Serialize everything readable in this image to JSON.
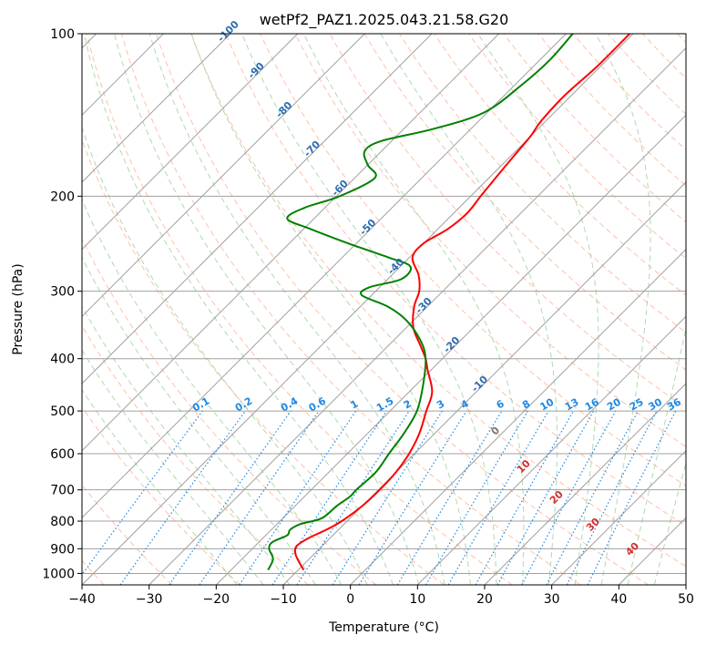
{
  "chart_data": {
    "type": "line",
    "title": "wetPf2_PAZ1.2025.043.21.58.G20",
    "xlabel": "Temperature (°C)",
    "ylabel": "Pressure (hPa)",
    "xlim": [
      -40,
      50
    ],
    "ylim": [
      1050,
      100
    ],
    "y_scale": "log",
    "skew": true,
    "grid": true,
    "x_ticks": [
      -40,
      -30,
      -20,
      -10,
      0,
      10,
      20,
      30,
      40,
      50
    ],
    "y_ticks": [
      1000,
      900,
      800,
      700,
      600,
      500,
      400,
      300,
      200,
      100
    ],
    "colors": {
      "temperature": "#ff0000",
      "dewpoint": "#008000",
      "isotherm": "#a0a0a0",
      "dry_adiabat": "#ffa07a",
      "moist_adiabat": "#90c890",
      "mixing_ratio": "#1e88e5",
      "isotherm_label": "#2c6db0",
      "moist_label": "#d03030",
      "theta_curve": "#d2b48c"
    },
    "isotherm_labels": [
      "-100",
      "-90",
      "-80",
      "-70",
      "-60",
      "-50",
      "-40",
      "-30",
      "-20",
      "-10"
    ],
    "mixing_ratio_labels": [
      "0.1",
      "0.2",
      "0.4",
      "0.6",
      "1",
      "1.5",
      "2",
      "3",
      "4",
      "6",
      "8",
      "10",
      "13",
      "16",
      "20",
      "25",
      "30",
      "36"
    ],
    "moist_adiabat_labels": [
      "0",
      "10",
      "20",
      "30",
      "40"
    ],
    "series": [
      {
        "name": "temperature",
        "points": [
          {
            "p": 985,
            "t": -9.2
          },
          {
            "p": 950,
            "t": -11.2
          },
          {
            "p": 920,
            "t": -12.8
          },
          {
            "p": 890,
            "t": -13.8
          },
          {
            "p": 860,
            "t": -13.2
          },
          {
            "p": 830,
            "t": -11.8
          },
          {
            "p": 800,
            "t": -10.8
          },
          {
            "p": 750,
            "t": -10.0
          },
          {
            "p": 700,
            "t": -9.8
          },
          {
            "p": 650,
            "t": -10.0
          },
          {
            "p": 600,
            "t": -10.8
          },
          {
            "p": 550,
            "t": -12.3
          },
          {
            "p": 500,
            "t": -14.6
          },
          {
            "p": 470,
            "t": -16.0
          },
          {
            "p": 450,
            "t": -17.5
          },
          {
            "p": 420,
            "t": -20.5
          },
          {
            "p": 400,
            "t": -22.5
          },
          {
            "p": 380,
            "t": -25.0
          },
          {
            "p": 350,
            "t": -29.0
          },
          {
            "p": 320,
            "t": -32.0
          },
          {
            "p": 300,
            "t": -33.5
          },
          {
            "p": 280,
            "t": -36.0
          },
          {
            "p": 260,
            "t": -39.5
          },
          {
            "p": 245,
            "t": -40.0
          },
          {
            "p": 230,
            "t": -38.5
          },
          {
            "p": 215,
            "t": -38.0
          },
          {
            "p": 200,
            "t": -38.5
          },
          {
            "p": 185,
            "t": -39.0
          },
          {
            "p": 170,
            "t": -39.5
          },
          {
            "p": 155,
            "t": -40.0
          },
          {
            "p": 145,
            "t": -40.7
          },
          {
            "p": 130,
            "t": -41.0
          },
          {
            "p": 115,
            "t": -40.5
          },
          {
            "p": 100,
            "t": -40.5
          }
        ]
      },
      {
        "name": "dewpoint",
        "points": [
          {
            "p": 985,
            "t": -14.5
          },
          {
            "p": 940,
            "t": -15.4
          },
          {
            "p": 900,
            "t": -17.5
          },
          {
            "p": 875,
            "t": -18.0
          },
          {
            "p": 850,
            "t": -16.8
          },
          {
            "p": 830,
            "t": -17.2
          },
          {
            "p": 810,
            "t": -16.5
          },
          {
            "p": 790,
            "t": -14.2
          },
          {
            "p": 750,
            "t": -13.8
          },
          {
            "p": 720,
            "t": -13.2
          },
          {
            "p": 700,
            "t": -13.3
          },
          {
            "p": 650,
            "t": -13.0
          },
          {
            "p": 600,
            "t": -13.8
          },
          {
            "p": 550,
            "t": -14.6
          },
          {
            "p": 500,
            "t": -16.0
          },
          {
            "p": 450,
            "t": -18.8
          },
          {
            "p": 400,
            "t": -22.5
          },
          {
            "p": 370,
            "t": -26.0
          },
          {
            "p": 340,
            "t": -31.0
          },
          {
            "p": 320,
            "t": -36.0
          },
          {
            "p": 305,
            "t": -41.5
          },
          {
            "p": 295,
            "t": -41.5
          },
          {
            "p": 285,
            "t": -38.0
          },
          {
            "p": 270,
            "t": -38.5
          },
          {
            "p": 260,
            "t": -43.0
          },
          {
            "p": 245,
            "t": -51.0
          },
          {
            "p": 230,
            "t": -59.0
          },
          {
            "p": 220,
            "t": -64.0
          },
          {
            "p": 210,
            "t": -63.0
          },
          {
            "p": 200,
            "t": -59.5
          },
          {
            "p": 185,
            "t": -57.0
          },
          {
            "p": 175,
            "t": -60.0
          },
          {
            "p": 165,
            "t": -62.5
          },
          {
            "p": 158,
            "t": -61.5
          },
          {
            "p": 150,
            "t": -55.5
          },
          {
            "p": 140,
            "t": -50.5
          },
          {
            "p": 125,
            "t": -49.0
          },
          {
            "p": 112,
            "t": -48.5
          },
          {
            "p": 100,
            "t": -49.0
          }
        ]
      }
    ]
  }
}
